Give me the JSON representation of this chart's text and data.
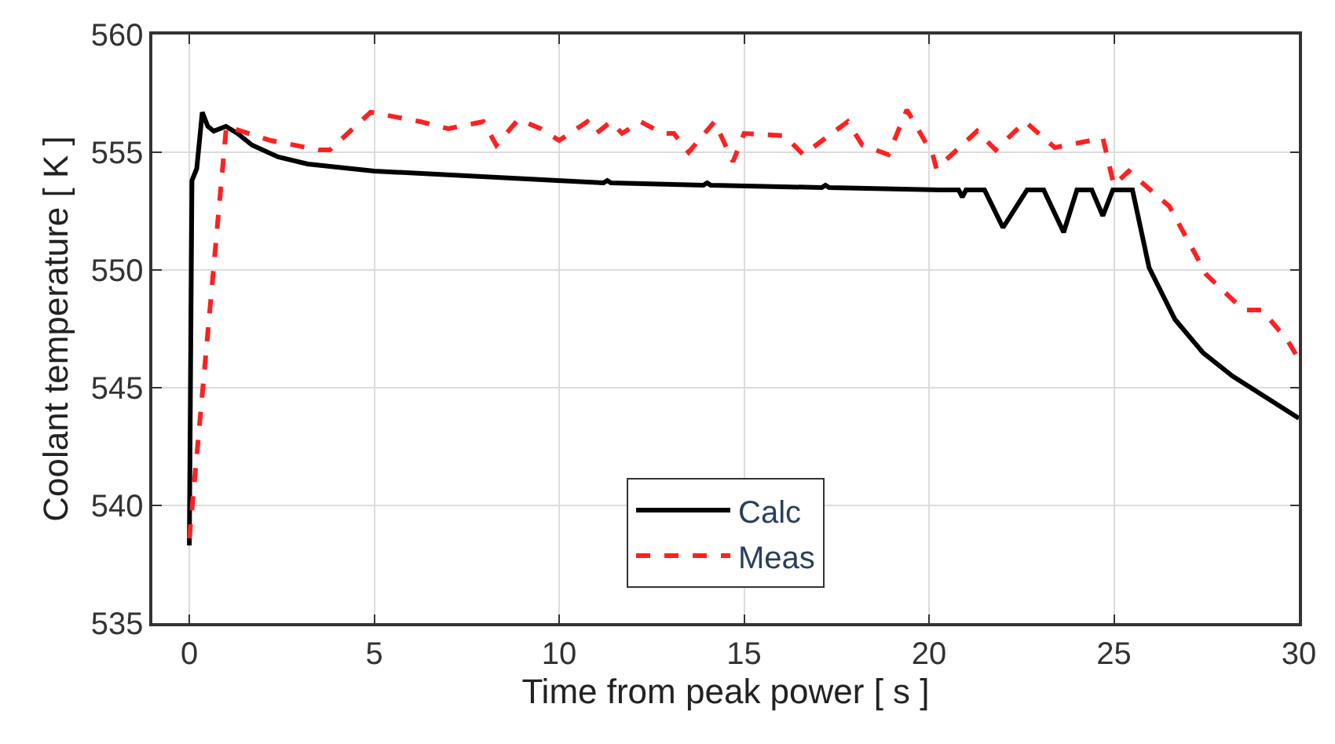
{
  "chart_data": {
    "type": "line",
    "xlabel": "Time from peak power [ s ]",
    "ylabel": "Coolant temperature [ K ]",
    "xlim": [
      -1,
      30
    ],
    "xticks": [
      0,
      5,
      10,
      15,
      20,
      25,
      30
    ],
    "ylim": [
      535,
      560
    ],
    "yticks": [
      535,
      540,
      545,
      550,
      555,
      560
    ],
    "grid": true,
    "legend": "bottom",
    "marker": "none",
    "series": [
      {
        "name": "Calc",
        "color": "#000000",
        "line_style": "solid",
        "x": [
          0,
          0.07,
          0.2,
          0.35,
          0.5,
          0.66,
          0.99,
          1.3,
          1.7,
          2.4,
          3.2,
          5,
          7.5,
          9.95,
          11.2,
          11.3,
          11.4,
          13.9,
          14,
          14.1,
          17.1,
          17.2,
          17.3,
          20.3,
          20.8,
          20.9,
          21,
          21.5,
          22.0,
          22.65,
          23.1,
          23.64,
          24.0,
          24.4,
          24.7,
          24.97,
          25.5,
          25.95,
          26.65,
          27.4,
          28.2,
          29.1,
          30
        ],
        "values": [
          538.3,
          553.8,
          554.3,
          556.7,
          556.1,
          555.9,
          556.1,
          555.8,
          555.3,
          554.8,
          554.5,
          554.2,
          554.0,
          553.8,
          553.7,
          553.8,
          553.7,
          553.6,
          553.7,
          553.6,
          553.5,
          553.6,
          553.5,
          553.4,
          553.4,
          553.1,
          553.4,
          553.4,
          551.8,
          553.4,
          553.4,
          551.6,
          553.4,
          553.4,
          552.3,
          553.4,
          553.4,
          550.1,
          547.9,
          546.5,
          545.5,
          544.6,
          543.7
        ]
      },
      {
        "name": "Meas",
        "color": "#ff2020",
        "line_style": "dashed",
        "x": [
          0,
          1.0,
          2.2,
          3.5,
          3.8,
          4.9,
          6.25,
          7,
          7.95,
          8.3,
          8.9,
          9.5,
          10,
          10.76,
          11,
          11.4,
          11.7,
          12.2,
          12.8,
          13.1,
          13.5,
          14.2,
          14.7,
          15,
          16.1,
          16.6,
          17.8,
          18.2,
          18.9,
          19.4,
          20.1,
          20.2,
          21.3,
          21.8,
          22.6,
          23.4,
          24.7,
          25.0,
          25.4,
          26.5,
          27.5,
          28.5,
          29.0,
          29.7,
          30
        ],
        "values": [
          538.6,
          556.1,
          555.5,
          555.1,
          555.1,
          556.7,
          556.3,
          556.0,
          556.3,
          555.3,
          556.4,
          556.0,
          555.5,
          556.3,
          555.8,
          556.3,
          555.8,
          556.3,
          555.8,
          555.8,
          555.0,
          556.3,
          554.6,
          555.8,
          555.7,
          554.9,
          556.3,
          555.3,
          554.9,
          556.8,
          554.9,
          554.3,
          555.9,
          555.1,
          556.3,
          555.2,
          555.6,
          553.6,
          554.2,
          552.7,
          549.8,
          548.3,
          548.3,
          547.0,
          546.2
        ]
      }
    ]
  }
}
